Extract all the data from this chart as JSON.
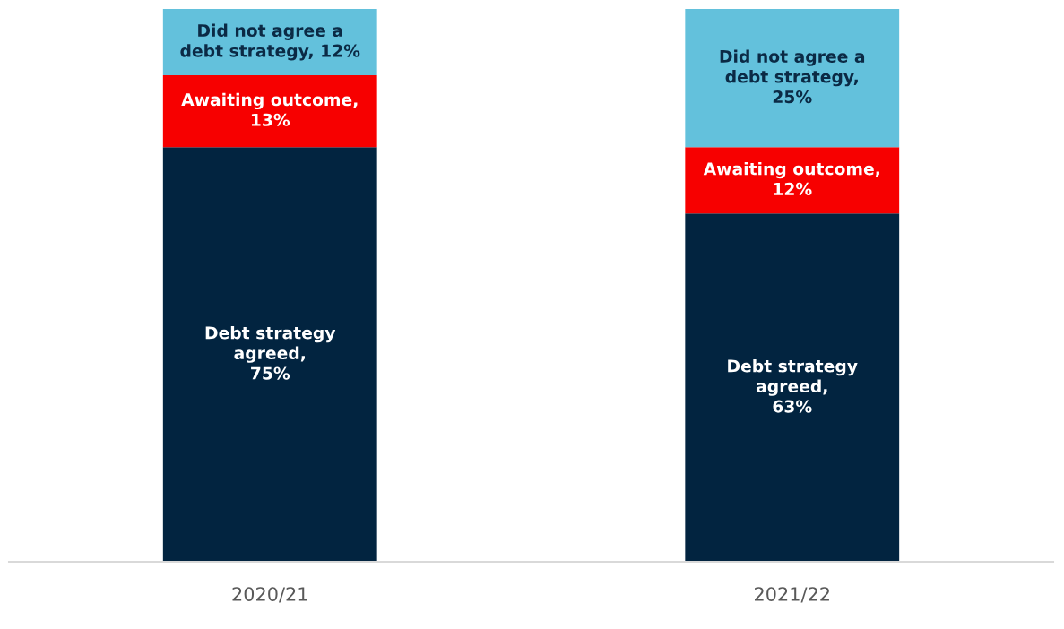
{
  "chart_data": {
    "type": "bar",
    "stacked": true,
    "categories": [
      "2020/21",
      "2021/22"
    ],
    "ylim": [
      0,
      100
    ],
    "tick_labels": "x",
    "grid": false,
    "legend": false,
    "series": [
      {
        "color": "#022440",
        "values": [
          75,
          63
        ],
        "value_labels": [
          "Debt strategy\nagreed,\n75%",
          "Debt strategy\nagreed,\n63%"
        ]
      },
      {
        "color": "#f70000",
        "values": [
          13,
          12
        ],
        "value_labels": [
          "Awaiting outcome,\n13%",
          "Awaiting outcome,\n12%"
        ]
      },
      {
        "color": "#63c1dc",
        "values": [
          12,
          25
        ],
        "value_labels": [
          "Did not agree a\ndebt strategy, 12%",
          "Did not agree a\ndebt strategy,\n25%"
        ]
      }
    ]
  }
}
